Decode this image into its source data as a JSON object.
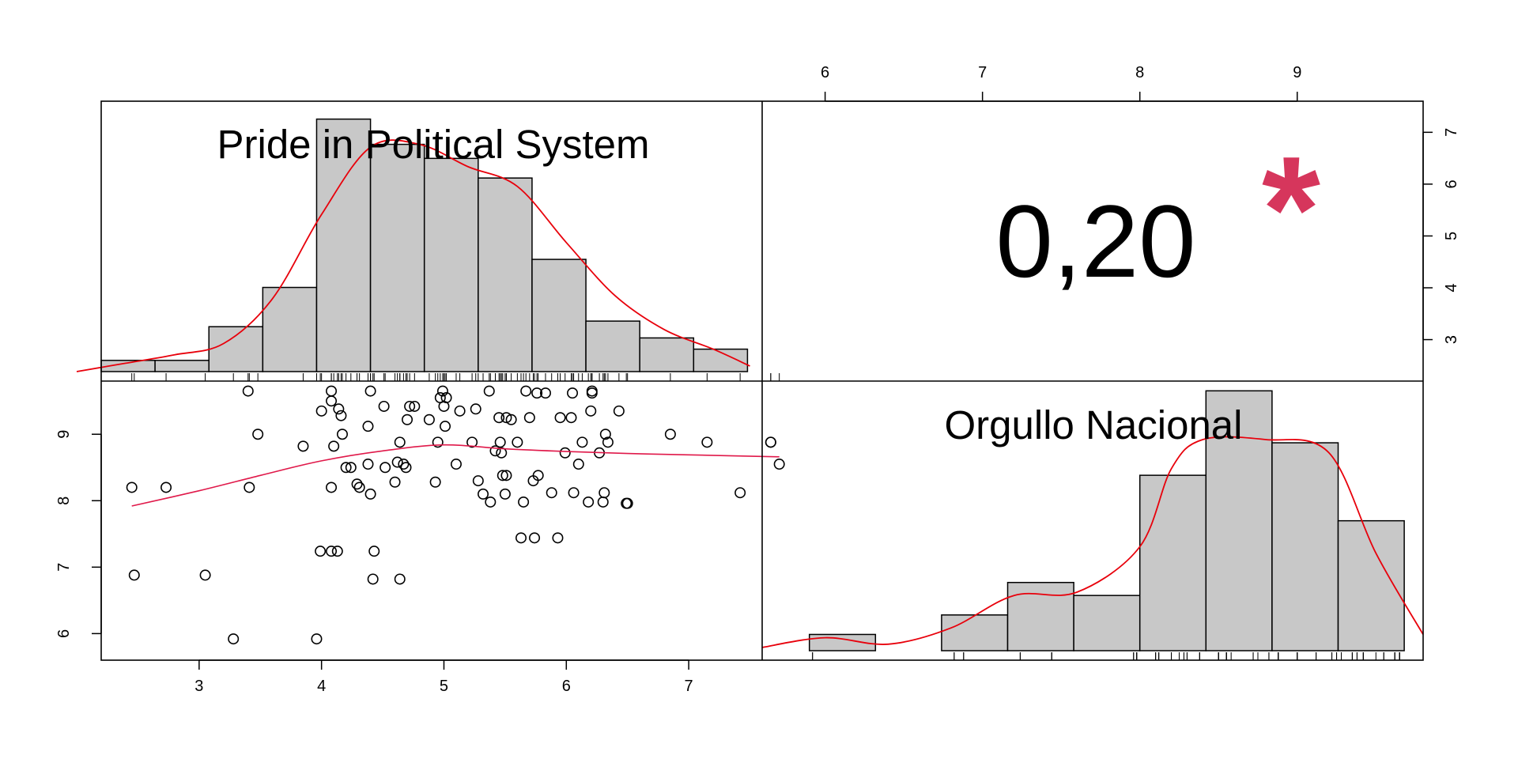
{
  "colors": {
    "bar_fill": "#c8c8c8",
    "bar_stroke": "#000000",
    "density_line": "#e8000b",
    "smooth_line": "#e0194a",
    "significance_star": "#d6365c",
    "frame": "#000000"
  },
  "chart_data": [
    {
      "type": "histogram",
      "panel": "top-left",
      "title": "Pride in Political System",
      "bins": [
        [
          2.2,
          2.64,
          0.4
        ],
        [
          2.64,
          3.08,
          0.4
        ],
        [
          3.08,
          3.52,
          1.6
        ],
        [
          3.52,
          3.96,
          3.0
        ],
        [
          3.96,
          4.4,
          9.0
        ],
        [
          4.4,
          4.84,
          8.1
        ],
        [
          4.84,
          5.28,
          7.6
        ],
        [
          5.28,
          5.72,
          6.9
        ],
        [
          5.72,
          6.16,
          4.0
        ],
        [
          6.16,
          6.6,
          1.8
        ],
        [
          6.6,
          7.04,
          1.2
        ],
        [
          7.04,
          7.48,
          0.8
        ]
      ],
      "density_curve": [
        [
          2.0,
          0.0
        ],
        [
          2.4,
          0.3
        ],
        [
          2.8,
          0.6
        ],
        [
          3.2,
          1.0
        ],
        [
          3.6,
          2.6
        ],
        [
          4.0,
          5.6
        ],
        [
          4.4,
          8.0
        ],
        [
          4.8,
          8.1
        ],
        [
          5.2,
          7.3
        ],
        [
          5.6,
          6.6
        ],
        [
          6.0,
          4.6
        ],
        [
          6.4,
          2.7
        ],
        [
          6.8,
          1.5
        ],
        [
          7.2,
          0.8
        ],
        [
          7.5,
          0.2
        ]
      ],
      "yrange": [
        0,
        9.3
      ],
      "rug_note": "observation ticks along the bottom",
      "right_axis": {
        "ticks": [
          3,
          4,
          5,
          6,
          7
        ],
        "range": [
          2.2,
          7.6
        ]
      }
    },
    {
      "type": "text",
      "panel": "top-right",
      "value": "0,20",
      "significance": "*",
      "top_axis": {
        "ticks": [
          6,
          7,
          8,
          9
        ],
        "range": [
          5.6,
          9.8
        ]
      }
    },
    {
      "type": "scatter",
      "panel": "bottom-left",
      "xlim": [
        2.2,
        7.6
      ],
      "ylim": [
        5.6,
        9.8
      ],
      "bottom_axis": {
        "ticks": [
          3,
          4,
          5,
          6,
          7
        ]
      },
      "left_axis": {
        "ticks": [
          6,
          7,
          8,
          9
        ]
      },
      "points": [
        [
          2.45,
          8.2
        ],
        [
          2.47,
          6.88
        ],
        [
          2.73,
          8.2
        ],
        [
          3.05,
          6.88
        ],
        [
          3.28,
          5.92
        ],
        [
          3.4,
          9.65
        ],
        [
          3.41,
          8.2
        ],
        [
          3.48,
          9.0
        ],
        [
          3.85,
          8.82
        ],
        [
          3.96,
          5.92
        ],
        [
          3.99,
          7.24
        ],
        [
          4.0,
          9.35
        ],
        [
          4.08,
          9.65
        ],
        [
          4.08,
          9.5
        ],
        [
          4.08,
          8.2
        ],
        [
          4.08,
          7.24
        ],
        [
          4.1,
          8.82
        ],
        [
          4.13,
          7.24
        ],
        [
          4.14,
          9.38
        ],
        [
          4.16,
          9.28
        ],
        [
          4.17,
          9.0
        ],
        [
          4.2,
          8.5
        ],
        [
          4.24,
          8.5
        ],
        [
          4.29,
          8.25
        ],
        [
          4.31,
          8.2
        ],
        [
          4.38,
          9.12
        ],
        [
          4.38,
          8.55
        ],
        [
          4.4,
          9.65
        ],
        [
          4.4,
          8.1
        ],
        [
          4.42,
          6.82
        ],
        [
          4.43,
          7.24
        ],
        [
          4.51,
          9.42
        ],
        [
          4.52,
          8.5
        ],
        [
          4.6,
          8.28
        ],
        [
          4.62,
          8.58
        ],
        [
          4.64,
          8.88
        ],
        [
          4.64,
          6.82
        ],
        [
          4.67,
          8.55
        ],
        [
          4.69,
          8.5
        ],
        [
          4.7,
          9.22
        ],
        [
          4.72,
          9.42
        ],
        [
          4.76,
          9.42
        ],
        [
          4.88,
          9.22
        ],
        [
          4.93,
          8.28
        ],
        [
          4.95,
          8.88
        ],
        [
          4.97,
          9.55
        ],
        [
          4.99,
          9.65
        ],
        [
          5.0,
          9.42
        ],
        [
          5.01,
          9.12
        ],
        [
          5.02,
          9.55
        ],
        [
          5.1,
          8.55
        ],
        [
          5.13,
          9.35
        ],
        [
          5.23,
          8.88
        ],
        [
          5.26,
          9.38
        ],
        [
          5.28,
          8.3
        ],
        [
          5.32,
          8.1
        ],
        [
          5.37,
          9.65
        ],
        [
          5.38,
          7.98
        ],
        [
          5.42,
          8.75
        ],
        [
          5.45,
          9.25
        ],
        [
          5.46,
          8.88
        ],
        [
          5.47,
          8.72
        ],
        [
          5.48,
          8.38
        ],
        [
          5.5,
          8.1
        ],
        [
          5.51,
          8.38
        ],
        [
          5.51,
          9.25
        ],
        [
          5.55,
          9.22
        ],
        [
          5.6,
          8.88
        ],
        [
          5.63,
          7.44
        ],
        [
          5.65,
          7.98
        ],
        [
          5.67,
          9.65
        ],
        [
          5.7,
          9.25
        ],
        [
          5.73,
          8.3
        ],
        [
          5.74,
          7.44
        ],
        [
          5.76,
          9.62
        ],
        [
          5.77,
          8.38
        ],
        [
          5.83,
          9.62
        ],
        [
          5.88,
          8.12
        ],
        [
          5.93,
          7.44
        ],
        [
          5.95,
          9.25
        ],
        [
          5.99,
          8.72
        ],
        [
          6.04,
          9.25
        ],
        [
          6.05,
          9.62
        ],
        [
          6.06,
          8.12
        ],
        [
          6.1,
          8.55
        ],
        [
          6.13,
          8.88
        ],
        [
          6.18,
          7.98
        ],
        [
          6.2,
          9.35
        ],
        [
          6.21,
          9.65
        ],
        [
          6.21,
          9.62
        ],
        [
          6.27,
          8.72
        ],
        [
          6.3,
          7.98
        ],
        [
          6.31,
          8.12
        ],
        [
          6.32,
          9.0
        ],
        [
          6.34,
          8.88
        ],
        [
          6.43,
          9.35
        ],
        [
          6.49,
          7.96
        ],
        [
          6.5,
          7.96
        ],
        [
          6.85,
          9.0
        ],
        [
          7.15,
          8.88
        ],
        [
          7.42,
          8.12
        ],
        [
          7.67,
          8.88
        ],
        [
          7.67,
          8.88
        ],
        [
          7.74,
          8.55
        ]
      ],
      "smooth_line": [
        [
          2.45,
          7.92
        ],
        [
          3.0,
          8.15
        ],
        [
          3.5,
          8.38
        ],
        [
          4.0,
          8.6
        ],
        [
          4.5,
          8.75
        ],
        [
          5.0,
          8.84
        ],
        [
          5.5,
          8.78
        ],
        [
          6.0,
          8.74
        ],
        [
          6.5,
          8.71
        ],
        [
          7.0,
          8.69
        ],
        [
          7.74,
          8.66
        ]
      ]
    },
    {
      "type": "histogram",
      "panel": "bottom-right",
      "title": "Orgullo Nacional",
      "bins": [
        [
          5.9,
          6.32,
          0.5
        ],
        [
          6.32,
          6.74,
          0.0
        ],
        [
          6.74,
          7.16,
          1.1
        ],
        [
          7.16,
          7.58,
          2.1
        ],
        [
          7.58,
          8.0,
          1.7
        ],
        [
          8.0,
          8.42,
          5.4
        ],
        [
          8.42,
          8.84,
          8.0
        ],
        [
          8.84,
          9.26,
          6.4
        ],
        [
          9.26,
          9.68,
          4.0
        ]
      ],
      "density_curve": [
        [
          5.6,
          0.1
        ],
        [
          6.0,
          0.4
        ],
        [
          6.4,
          0.2
        ],
        [
          6.8,
          0.7
        ],
        [
          7.2,
          1.7
        ],
        [
          7.6,
          1.8
        ],
        [
          8.0,
          3.2
        ],
        [
          8.2,
          5.6
        ],
        [
          8.4,
          6.5
        ],
        [
          8.8,
          6.5
        ],
        [
          9.2,
          6.1
        ],
        [
          9.5,
          3.0
        ],
        [
          9.8,
          0.5
        ]
      ],
      "yrange": [
        0,
        8.3
      ]
    }
  ]
}
